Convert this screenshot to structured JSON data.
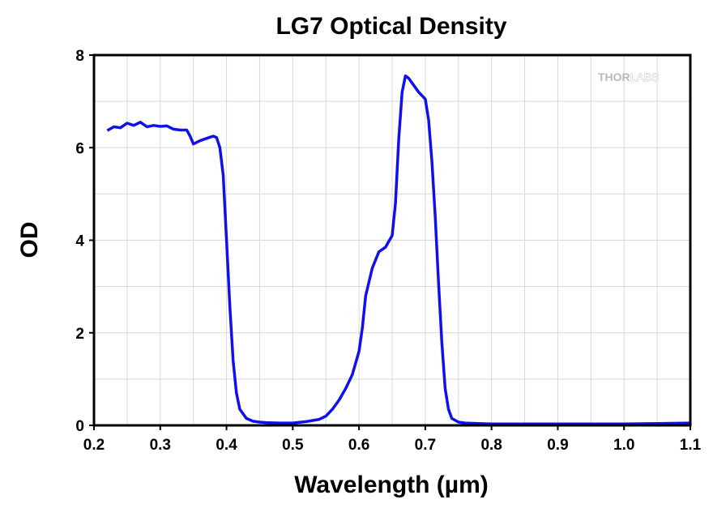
{
  "chart_data": {
    "type": "line",
    "title": "LG7 Optical Density",
    "xlabel": "Wavelength (µm)",
    "ylabel": "OD",
    "xlim": [
      0.2,
      1.1
    ],
    "ylim": [
      0,
      8
    ],
    "xticks": [
      "0.2",
      "0.3",
      "0.4",
      "0.5",
      "0.6",
      "0.7",
      "0.8",
      "0.9",
      "1.0",
      "1.1"
    ],
    "yticks": [
      "0",
      "2",
      "4",
      "6",
      "8"
    ],
    "grid": true,
    "line_color": "#1010ee",
    "series": [
      {
        "x": [
          0.22,
          0.23,
          0.24,
          0.25,
          0.26,
          0.27,
          0.28,
          0.29,
          0.3,
          0.31,
          0.32,
          0.33,
          0.34,
          0.345,
          0.35,
          0.36,
          0.37,
          0.38,
          0.385,
          0.39,
          0.395,
          0.4,
          0.405,
          0.41,
          0.415,
          0.42,
          0.43,
          0.44,
          0.45,
          0.46,
          0.48,
          0.5,
          0.52,
          0.54,
          0.55,
          0.56,
          0.57,
          0.58,
          0.59,
          0.6,
          0.605,
          0.61,
          0.62,
          0.63,
          0.64,
          0.65,
          0.655,
          0.66,
          0.665,
          0.67,
          0.675,
          0.68,
          0.69,
          0.7,
          0.705,
          0.71,
          0.715,
          0.72,
          0.725,
          0.73,
          0.735,
          0.74,
          0.75,
          0.76,
          0.78,
          0.8,
          0.85,
          0.9,
          0.95,
          1.0,
          1.05,
          1.1
        ],
        "y": [
          6.37,
          6.45,
          6.43,
          6.53,
          6.48,
          6.55,
          6.45,
          6.48,
          6.46,
          6.47,
          6.4,
          6.38,
          6.38,
          6.25,
          6.08,
          6.15,
          6.2,
          6.25,
          6.22,
          6.0,
          5.4,
          4.0,
          2.6,
          1.4,
          0.7,
          0.35,
          0.15,
          0.09,
          0.07,
          0.06,
          0.05,
          0.05,
          0.08,
          0.13,
          0.2,
          0.35,
          0.55,
          0.8,
          1.1,
          1.6,
          2.1,
          2.8,
          3.4,
          3.75,
          3.85,
          4.1,
          4.8,
          6.2,
          7.2,
          7.55,
          7.5,
          7.4,
          7.2,
          7.05,
          6.6,
          5.7,
          4.5,
          3.1,
          1.8,
          0.8,
          0.35,
          0.15,
          0.07,
          0.05,
          0.04,
          0.03,
          0.03,
          0.03,
          0.03,
          0.03,
          0.04,
          0.05
        ]
      }
    ]
  },
  "watermark": {
    "thor": "THOR",
    "labs": "LABS"
  }
}
